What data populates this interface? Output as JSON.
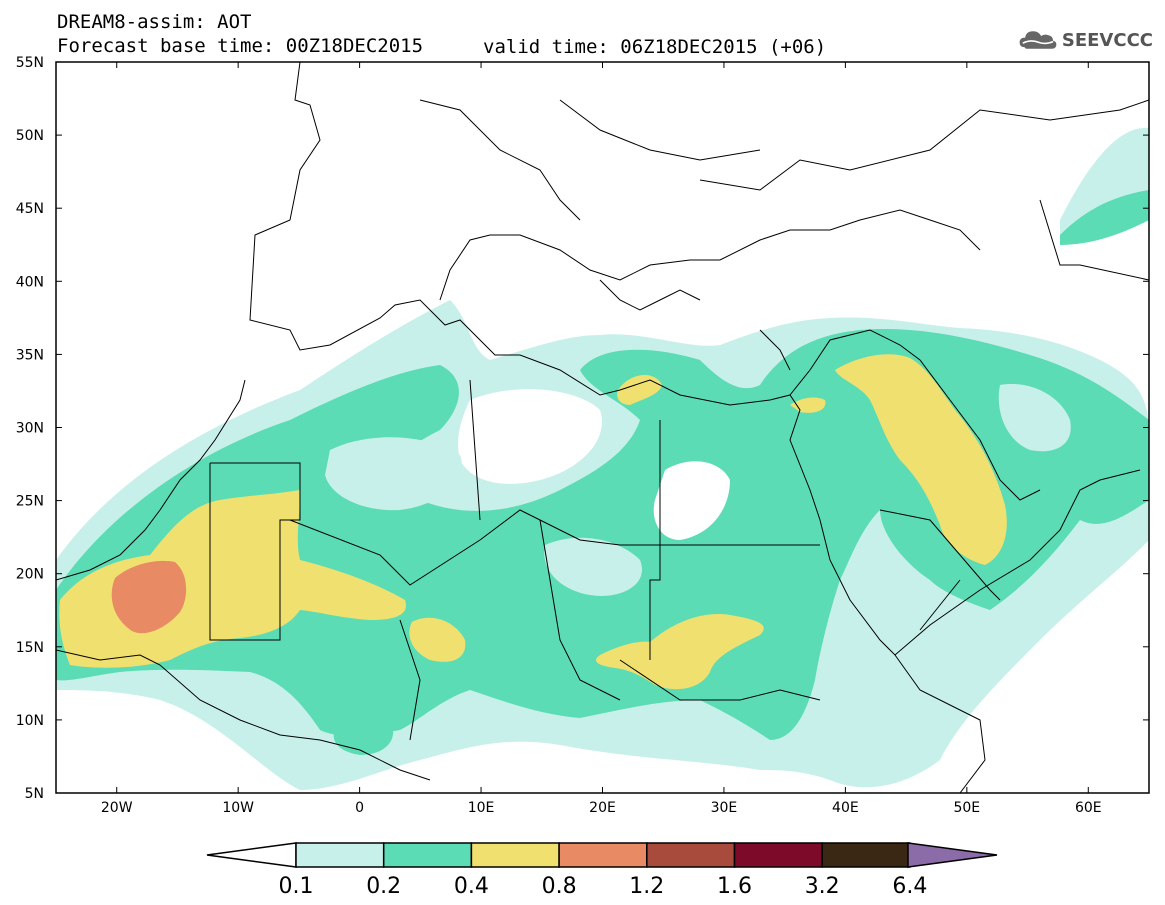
{
  "header": {
    "title": "DREAM8-assim: AOT",
    "base_time": "Forecast base time: 00Z18DEC2015",
    "valid_time": "valid time: 06Z18DEC2015 (+06)"
  },
  "logo": {
    "icon": "cloud-icon",
    "text": "SEEVCCC"
  },
  "chart_data": {
    "type": "heatmap",
    "variable": "AOT",
    "x_ticks": [
      "20W",
      "10W",
      "0",
      "10E",
      "20E",
      "30E",
      "40E",
      "50E",
      "60E"
    ],
    "x_tick_values": [
      -20,
      -10,
      0,
      10,
      20,
      30,
      40,
      50,
      60
    ],
    "y_ticks": [
      "55N",
      "50N",
      "45N",
      "40N",
      "35N",
      "30N",
      "25N",
      "20N",
      "15N",
      "10N",
      "5N"
    ],
    "y_tick_values": [
      55,
      50,
      45,
      40,
      35,
      30,
      25,
      20,
      15,
      10,
      5
    ],
    "lon_range": [
      -25,
      65
    ],
    "lat_range": [
      5,
      55
    ],
    "levels": [
      "0.1",
      "0.2",
      "0.4",
      "0.8",
      "1.2",
      "1.6",
      "3.2",
      "6.4"
    ],
    "colors": [
      "#c8f0ea",
      "#5cdcb4",
      "#f0e070",
      "#e88a64",
      "#a84a3c",
      "#7c0a28",
      "#3a2814",
      "#8c6ca8"
    ],
    "regions": [
      {
        "level": 0.1,
        "desc": "light aerosol envelope over North Africa and Arabia"
      },
      {
        "level": 0.2,
        "desc": "Sahara and Sahel belt, Arabian peninsula"
      },
      {
        "level": 0.4,
        "desc": "Mauritania / western Sahara, Chad, Sudan, Libya coast, Iraq / Persian Gulf"
      },
      {
        "level": 0.8,
        "desc": "Coast of Mauritania near 18N 16W"
      }
    ]
  }
}
